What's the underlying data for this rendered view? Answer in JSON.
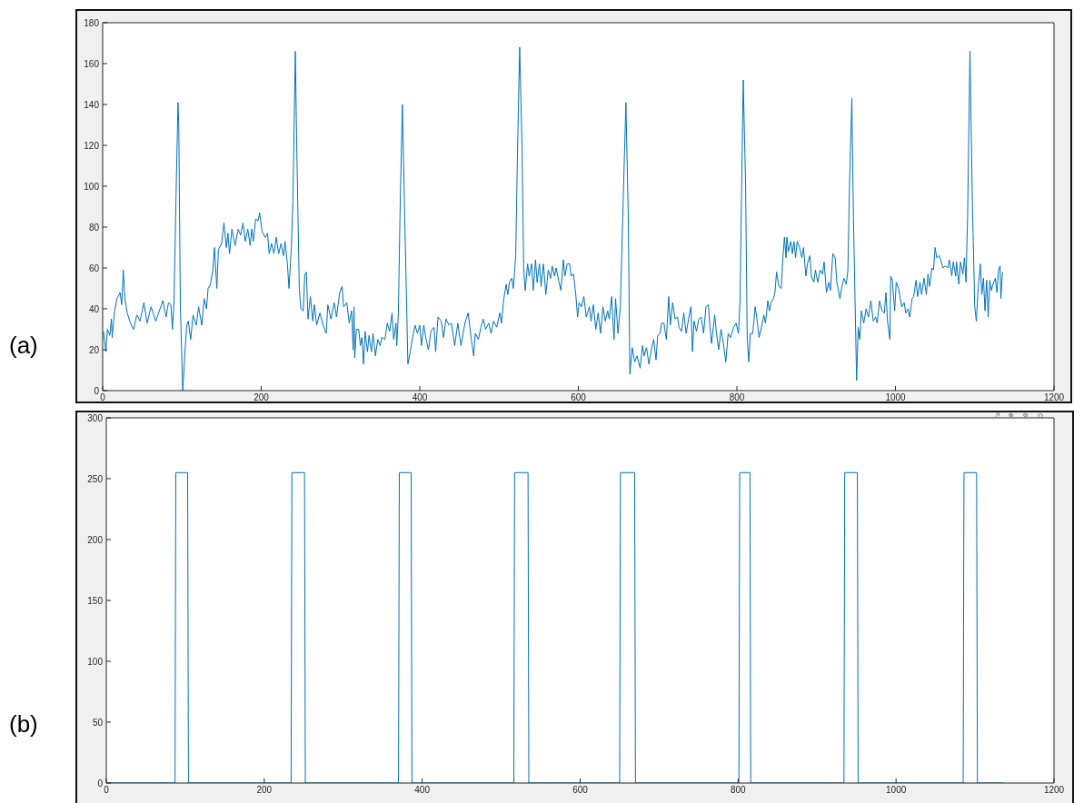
{
  "chart_data": [
    {
      "type": "line",
      "annotations": [
        "(a)"
      ],
      "color": "#0072bd",
      "x": [
        1,
        4,
        6,
        9,
        11,
        12,
        15,
        18,
        22,
        24,
        26,
        28,
        31,
        35,
        39,
        43,
        47,
        52,
        56,
        61,
        67,
        76,
        80,
        83,
        86,
        88,
        90,
        92,
        95,
        96,
        98,
        101,
        104,
        106,
        108,
        111,
        114,
        118,
        121,
        125,
        128,
        131,
        133,
        136,
        139,
        141,
        144,
        146,
        150,
        153,
        156,
        158,
        160,
        163,
        167,
        171,
        174,
        177,
        180,
        183,
        186,
        188,
        190,
        193,
        196,
        198,
        201,
        205,
        208,
        210,
        213,
        216,
        219,
        222,
        225,
        228,
        230,
        233,
        235,
        238,
        240,
        243,
        245,
        248,
        250,
        253,
        255,
        257,
        259,
        262,
        265,
        267,
        270,
        274,
        278,
        282,
        284,
        288,
        292,
        295,
        299,
        302,
        304,
        308,
        311,
        314,
        316,
        317,
        318,
        320,
        323,
        325,
        327,
        329,
        331,
        334,
        336,
        339,
        341,
        344,
        347,
        350,
        352,
        356,
        359,
        362,
        365,
        367,
        370,
        371,
        373,
        375,
        378,
        381,
        385,
        388,
        390,
        394,
        397,
        400,
        402,
        405,
        408,
        411,
        414,
        418,
        420,
        423,
        427,
        430,
        433,
        437,
        440,
        444,
        448,
        452,
        457,
        461,
        465,
        468,
        470,
        474,
        477,
        480,
        483,
        487,
        490,
        493,
        497,
        501,
        503,
        506,
        509,
        511,
        513,
        516,
        518,
        521,
        523,
        526,
        529,
        531,
        533,
        536,
        538,
        541,
        543,
        546,
        548,
        551,
        553,
        556,
        559,
        562,
        565,
        567,
        570,
        572,
        575,
        578,
        581,
        583,
        586,
        589,
        591,
        594,
        597,
        599,
        601,
        604,
        607,
        610,
        614,
        616,
        619,
        622,
        625,
        628,
        631,
        634,
        637,
        639,
        642,
        645,
        647,
        650,
        653,
        656,
        660,
        663,
        665,
        668,
        671,
        674,
        678,
        681,
        683,
        686,
        689,
        692,
        695,
        698,
        700,
        703,
        705,
        708,
        711,
        714,
        716,
        719,
        722,
        725,
        727,
        730,
        733,
        736,
        739,
        742,
        744,
        746,
        749,
        752,
        755,
        758,
        761,
        764,
        766,
        768,
        772,
        774,
        777,
        780,
        783,
        786,
        789,
        792,
        796,
        799,
        802,
        804,
        806,
        808,
        811,
        813,
        815,
        817,
        820,
        823,
        825,
        828,
        831,
        834,
        836,
        839,
        841,
        843,
        846,
        848,
        850,
        853,
        856,
        858,
        860,
        862,
        863,
        865,
        868,
        870,
        872,
        874,
        876,
        879,
        882,
        884,
        887,
        889,
        892,
        894,
        897,
        899,
        902,
        905,
        908,
        910,
        913,
        916,
        918,
        921,
        924,
        926,
        930,
        932,
        935,
        938,
        940,
        942,
        945,
        947,
        951,
        953,
        955,
        957,
        960,
        963,
        966,
        969,
        972,
        975,
        977,
        980,
        983,
        986,
        988,
        990,
        993,
        994,
        996,
        999,
        1001,
        1004,
        1006,
        1008,
        1011,
        1013,
        1016,
        1018,
        1021,
        1023,
        1026,
        1028,
        1031,
        1033,
        1036,
        1039,
        1041,
        1043,
        1046,
        1048,
        1050,
        1052,
        1055,
        1057,
        1060,
        1063,
        1066,
        1068,
        1071,
        1073,
        1076,
        1077,
        1080,
        1082,
        1085,
        1087,
        1089,
        1091,
        1094,
        1097,
        1100,
        1102,
        1104,
        1107,
        1109,
        1111,
        1113,
        1115,
        1117,
        1119,
        1121,
        1123,
        1126,
        1128,
        1130,
        1132,
        1133,
        1135
      ],
      "values": [
        29,
        19,
        30,
        27,
        35,
        26,
        39,
        45,
        48,
        42,
        59,
        45,
        38,
        33,
        30,
        37,
        34,
        43,
        33,
        41,
        34,
        44,
        36,
        43,
        42,
        30,
        44,
        85,
        141,
        130,
        41,
        0,
        20,
        32,
        34,
        25,
        37,
        32,
        41,
        32,
        45,
        40,
        50,
        52,
        59,
        70,
        50,
        69,
        72,
        82,
        70,
        77,
        67,
        79,
        71,
        79,
        76,
        82,
        73,
        79,
        71,
        79,
        73,
        84,
        83,
        87,
        78,
        75,
        77,
        67,
        72,
        67,
        75,
        67,
        72,
        66,
        73,
        62,
        50,
        70,
        93,
        166,
        115,
        50,
        40,
        39,
        57,
        58,
        35,
        46,
        34,
        42,
        32,
        38,
        32,
        28,
        42,
        35,
        43,
        36,
        48,
        51,
        41,
        43,
        33,
        39,
        20,
        41,
        16,
        30,
        30,
        22,
        26,
        13,
        29,
        19,
        27,
        19,
        28,
        17,
        25,
        22,
        26,
        25,
        33,
        29,
        38,
        25,
        33,
        22,
        38,
        85,
        140,
        85,
        13,
        19,
        24,
        32,
        28,
        32,
        22,
        32,
        25,
        20,
        29,
        31,
        19,
        36,
        34,
        26,
        35,
        32,
        33,
        22,
        33,
        22,
        33,
        38,
        25,
        17,
        28,
        25,
        31,
        35,
        30,
        33,
        28,
        34,
        31,
        38,
        33,
        45,
        52,
        47,
        53,
        55,
        50,
        66,
        112,
        168,
        119,
        60,
        49,
        62,
        56,
        62,
        49,
        64,
        53,
        62,
        51,
        62,
        47,
        59,
        55,
        61,
        56,
        60,
        54,
        49,
        64,
        56,
        62,
        62,
        56,
        57,
        46,
        36,
        43,
        41,
        46,
        36,
        41,
        34,
        42,
        30,
        38,
        28,
        41,
        34,
        39,
        35,
        46,
        25,
        45,
        28,
        41,
        85,
        141,
        85,
        8,
        21,
        14,
        17,
        11,
        22,
        17,
        21,
        13,
        20,
        25,
        15,
        27,
        28,
        33,
        33,
        25,
        46,
        32,
        43,
        35,
        36,
        31,
        29,
        38,
        28,
        35,
        41,
        19,
        34,
        29,
        35,
        36,
        28,
        41,
        42,
        31,
        23,
        37,
        29,
        20,
        30,
        23,
        14,
        28,
        26,
        31,
        33,
        28,
        44,
        100,
        152,
        100,
        26,
        14,
        28,
        28,
        41,
        36,
        26,
        31,
        37,
        33,
        44,
        39,
        43,
        45,
        48,
        58,
        51,
        50,
        65,
        75,
        65,
        75,
        68,
        73,
        67,
        73,
        65,
        73,
        70,
        65,
        70,
        56,
        62,
        66,
        56,
        53,
        59,
        53,
        59,
        57,
        63,
        48,
        53,
        49,
        67,
        65,
        53,
        45,
        50,
        55,
        52,
        59,
        100,
        143,
        85,
        5,
        31,
        25,
        39,
        33,
        40,
        36,
        44,
        34,
        36,
        33,
        44,
        39,
        38,
        48,
        34,
        25,
        56,
        54,
        39,
        53,
        50,
        45,
        41,
        43,
        38,
        40,
        36,
        45,
        46,
        54,
        46,
        53,
        47,
        55,
        47,
        57,
        51,
        60,
        59,
        70,
        65,
        66,
        64,
        60,
        61,
        60,
        64,
        56,
        63,
        56,
        63,
        52,
        63,
        57,
        65,
        53,
        85,
        166,
        93,
        41,
        34,
        48,
        62,
        47,
        55,
        39,
        54,
        36,
        54,
        49,
        52,
        55,
        48,
        59,
        61,
        45,
        58
      ],
      "xlim": [
        0,
        1200
      ],
      "xticks": [
        0,
        200,
        400,
        600,
        800,
        1000,
        1200
      ],
      "ylim": [
        0,
        180
      ],
      "yticks": [
        0,
        20,
        40,
        60,
        80,
        100,
        120,
        140,
        160,
        180
      ]
    },
    {
      "type": "line",
      "annotations": [
        "(b)"
      ],
      "color": "#0072bd",
      "x": [
        0,
        87,
        88,
        103,
        104,
        234,
        235,
        251,
        252,
        370,
        371,
        386,
        387,
        516,
        517,
        534,
        535,
        650,
        651,
        669,
        670,
        801,
        802,
        815,
        816,
        934,
        935,
        951,
        952,
        1085,
        1086,
        1102,
        1103,
        1136
      ],
      "values": [
        0,
        0,
        255,
        255,
        0,
        0,
        255,
        255,
        0,
        0,
        255,
        255,
        0,
        0,
        255,
        255,
        0,
        0,
        255,
        255,
        0,
        0,
        255,
        255,
        0,
        0,
        255,
        255,
        0,
        0,
        255,
        255,
        0,
        0
      ],
      "xlim": [
        0,
        1200
      ],
      "xticks": [
        0,
        200,
        400,
        600,
        800,
        1000,
        1200
      ],
      "ylim": [
        0,
        300
      ],
      "yticks": [
        0,
        50,
        100,
        150,
        200,
        250,
        300
      ]
    }
  ]
}
